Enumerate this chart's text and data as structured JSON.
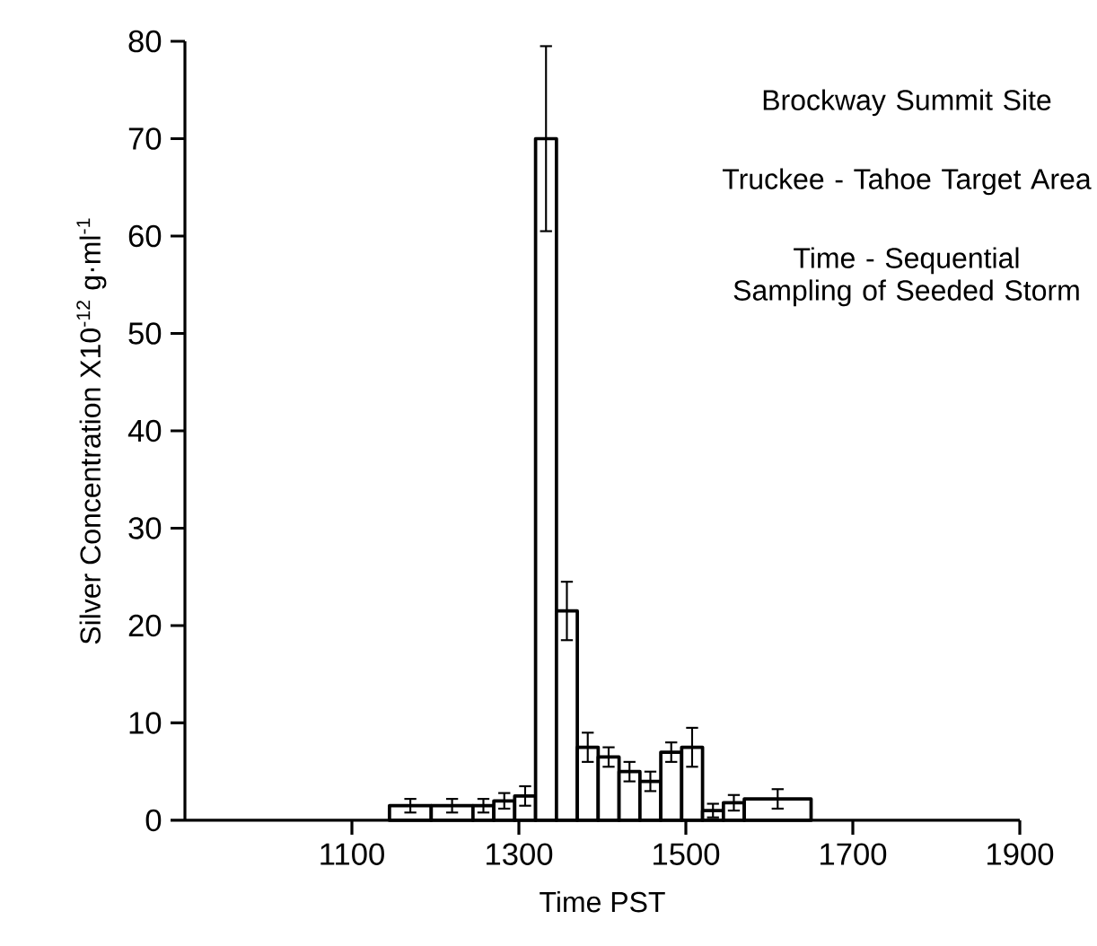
{
  "chart_data": {
    "type": "histogram",
    "xlabel": "Time PST",
    "ylabel": "Silver Concentration X10$^{-12}$ g·ml$^{-1}$",
    "annotations": [
      "Brockway Summit Site",
      "Truckee - Tahoe Target Area",
      "Time - Sequential Sampling of Seeded Storm"
    ],
    "bins": [
      1145,
      1195,
      1245,
      1270,
      1295,
      1320,
      1345,
      1370,
      1395,
      1420,
      1445,
      1470,
      1495,
      1520,
      1545,
      1570,
      1650
    ],
    "values": [
      1.5,
      1.5,
      1.5,
      2,
      2.5,
      70,
      21.5,
      7.5,
      6.5,
      5,
      4,
      7,
      7.5,
      1,
      1.8,
      2.2
    ],
    "errors": [
      0.7,
      0.7,
      0.7,
      0.8,
      1,
      9.5,
      3,
      1.5,
      1,
      1,
      1,
      1,
      2,
      0.7,
      0.8,
      1
    ],
    "color": "#000000",
    "xlim": [
      900,
      1900
    ],
    "xticks": [
      1100,
      1300,
      1500,
      1700,
      1900
    ],
    "ylim": [
      0,
      80
    ],
    "yticks": [
      0,
      10,
      20,
      30,
      40,
      50,
      60,
      70,
      80
    ]
  }
}
